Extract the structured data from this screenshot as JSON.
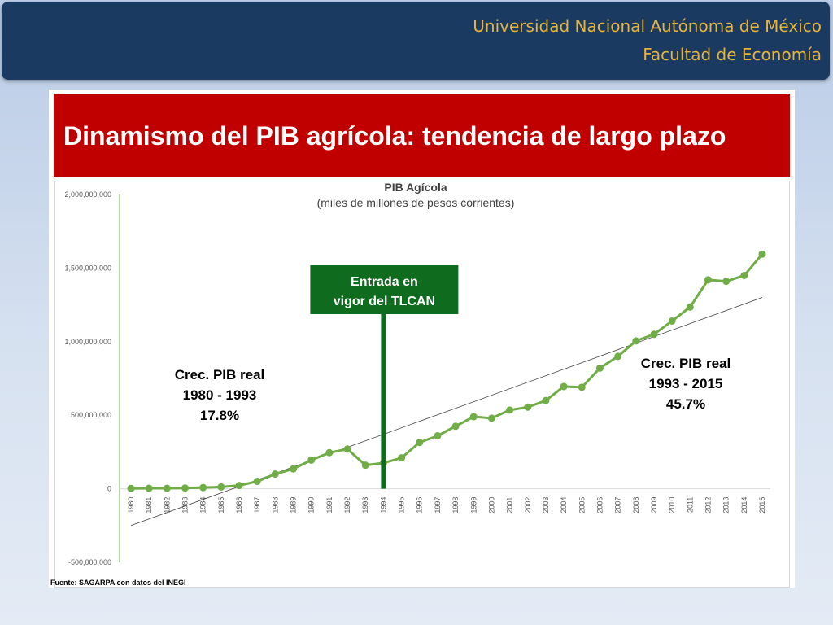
{
  "header": {
    "university": "Universidad Nacional Autónoma de México",
    "faculty": "Facultad de Economía"
  },
  "slide": {
    "title": "Dinamismo del PIB agrícola: tendencia de largo plazo",
    "source": "Fuente: SAGARPA con datos del  INEGI"
  },
  "colors": {
    "banner": "#1b3a62",
    "banner_text": "#e6b43a",
    "title_bar": "#c00000",
    "series": "#70ad47",
    "callout": "#0f6b1e"
  },
  "chart_data": {
    "type": "line",
    "title": "PIB Agícola",
    "subtitle": "(miles de millones de pesos corrientes)",
    "x": [
      "1980",
      "1981",
      "1982",
      "1983",
      "1984",
      "1985",
      "1986",
      "1987",
      "1988",
      "1989",
      "1990",
      "1991",
      "1992",
      "1993",
      "1994",
      "1995",
      "1996",
      "1997",
      "1998",
      "1999",
      "2000",
      "2001",
      "2002",
      "2003",
      "2004",
      "2005",
      "2006",
      "2007",
      "2008",
      "2009",
      "2010",
      "2011",
      "2012",
      "2013",
      "2014",
      "2015"
    ],
    "series": [
      {
        "values": [
          2000000,
          3000000,
          3000000,
          5000000,
          8000000,
          12000000,
          22000000,
          50000000,
          100000000,
          135000000,
          195000000,
          245000000,
          270000000,
          160000000,
          175000000,
          210000000,
          315000000,
          360000000,
          425000000,
          490000000,
          480000000,
          535000000,
          555000000,
          600000000,
          695000000,
          690000000,
          820000000,
          900000000,
          1005000000,
          1050000000,
          1140000000,
          1235000000,
          1420000000,
          1410000000,
          1450000000,
          1595000000
        ]
      }
    ],
    "trendline": [
      -250000000,
      1300000000
    ],
    "yticks": [
      "2,000,000,000",
      "1,500,000,000",
      "1,000,000,000",
      "500,000,000",
      "0",
      "-500,000,000"
    ],
    "ylim": [
      -500000000,
      2000000000
    ],
    "grid": false,
    "annotations": {
      "tlcan_line1": "Entrada en",
      "tlcan_line2": "vigor del TLCAN",
      "tlcan_year": "1994",
      "left_line1": "Crec. PIB real",
      "left_line2": "1980 - 1993",
      "left_line3": "17.8%",
      "right_line1": "Crec. PIB real",
      "right_line2": "1993 - 2015",
      "right_line3": "45.7%"
    }
  }
}
